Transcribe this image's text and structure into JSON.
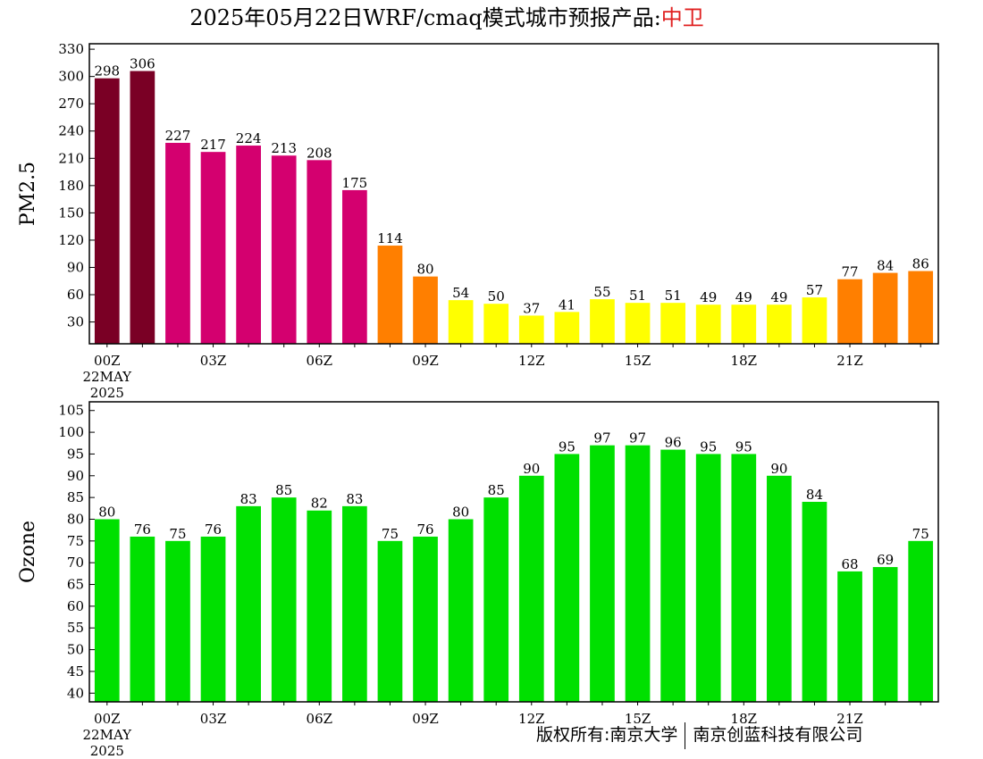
{
  "title": {
    "prefix": "2025年05月22日WRF/cmaq模式城市预报产品:",
    "city": "中卫",
    "city_color": "#e02020"
  },
  "footer": {
    "left": "版权所有:南京大学",
    "right": "南京创蓝科技有限公司"
  },
  "chart_data": [
    {
      "type": "bar",
      "ylabel": "PM2.5",
      "ylim": [
        6,
        336
      ],
      "yticks": [
        30,
        60,
        90,
        120,
        150,
        180,
        210,
        240,
        270,
        300,
        330
      ],
      "xtick_labels": [
        {
          "hour": 0,
          "label": "00Z",
          "sub": [
            "22MAY",
            "2025"
          ]
        },
        {
          "hour": 3,
          "label": "03Z"
        },
        {
          "hour": 6,
          "label": "06Z"
        },
        {
          "hour": 9,
          "label": "09Z"
        },
        {
          "hour": 12,
          "label": "12Z"
        },
        {
          "hour": 15,
          "label": "15Z"
        },
        {
          "hour": 18,
          "label": "18Z"
        },
        {
          "hour": 21,
          "label": "21Z"
        }
      ],
      "hours": [
        0,
        1,
        2,
        3,
        4,
        5,
        6,
        7,
        8,
        9,
        10,
        11,
        12,
        13,
        14,
        15,
        16,
        17,
        18,
        19,
        20,
        21,
        22,
        23
      ],
      "values": [
        298,
        306,
        227,
        217,
        224,
        213,
        208,
        175,
        114,
        80,
        54,
        50,
        37,
        41,
        55,
        51,
        51,
        49,
        49,
        49,
        57,
        77,
        84,
        86
      ],
      "colors": [
        "#7a0025",
        "#7a0025",
        "#d4006f",
        "#d4006f",
        "#d4006f",
        "#d4006f",
        "#d4006f",
        "#d4006f",
        "#ff7f00",
        "#ff7f00",
        "#ffff00",
        "#ffff00",
        "#ffff00",
        "#ffff00",
        "#ffff00",
        "#ffff00",
        "#ffff00",
        "#ffff00",
        "#ffff00",
        "#ffff00",
        "#ffff00",
        "#ff7f00",
        "#ff7f00",
        "#ff7f00"
      ],
      "grid": false
    },
    {
      "type": "bar",
      "ylabel": "Ozone",
      "ylim": [
        38,
        107
      ],
      "yticks": [
        40,
        45,
        50,
        55,
        60,
        65,
        70,
        75,
        80,
        85,
        90,
        95,
        100,
        105
      ],
      "xtick_labels": [
        {
          "hour": 0,
          "label": "00Z",
          "sub": [
            "22MAY",
            "2025"
          ]
        },
        {
          "hour": 3,
          "label": "03Z"
        },
        {
          "hour": 6,
          "label": "06Z"
        },
        {
          "hour": 9,
          "label": "09Z"
        },
        {
          "hour": 12,
          "label": "12Z"
        },
        {
          "hour": 15,
          "label": "15Z"
        },
        {
          "hour": 18,
          "label": "18Z"
        },
        {
          "hour": 21,
          "label": "21Z"
        }
      ],
      "hours": [
        0,
        1,
        2,
        3,
        4,
        5,
        6,
        7,
        8,
        9,
        10,
        11,
        12,
        13,
        14,
        15,
        16,
        17,
        18,
        19,
        20,
        21,
        22,
        23
      ],
      "values": [
        80,
        76,
        75,
        76,
        83,
        85,
        82,
        83,
        75,
        76,
        80,
        85,
        90,
        95,
        97,
        97,
        96,
        95,
        95,
        90,
        84,
        68,
        69,
        75
      ],
      "color": "#00e000",
      "grid": false
    }
  ]
}
